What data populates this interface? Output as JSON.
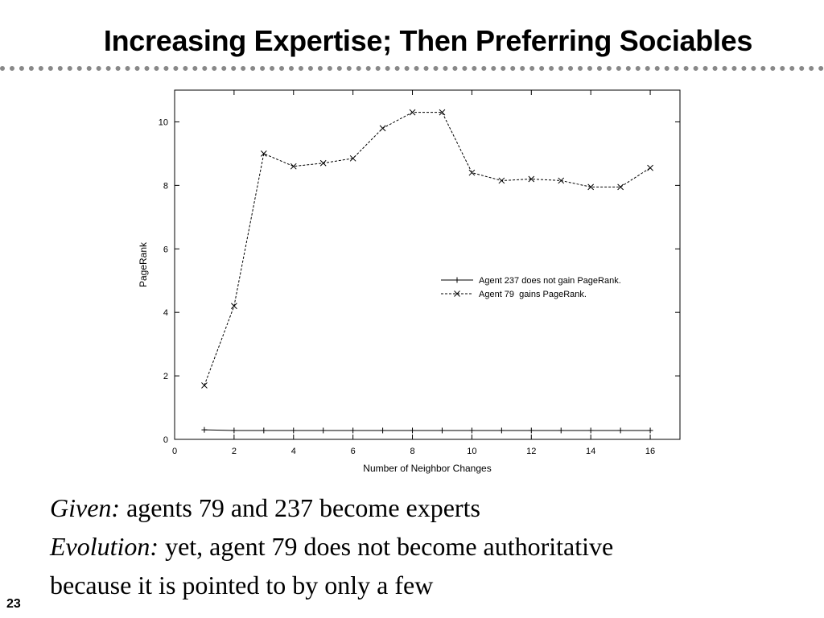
{
  "slide": {
    "title": "Increasing Expertise; Then Preferring Sociables",
    "number": "23"
  },
  "caption": {
    "line1_label": "Given:",
    "line1_text": "agents 79 and 237 become experts",
    "line2_label": "Evolution:",
    "line2_text": "yet, agent 79 does not become authoritative",
    "line3_text": "because it is pointed to by only a few"
  },
  "chart_data": {
    "type": "line",
    "xlabel": "Number of Neighbor Changes",
    "ylabel": "PageRank",
    "xlim": [
      0,
      17
    ],
    "ylim": [
      0,
      11
    ],
    "xticks": [
      0,
      2,
      4,
      6,
      8,
      10,
      12,
      14,
      16
    ],
    "yticks": [
      0,
      2,
      4,
      6,
      8,
      10
    ],
    "grid": false,
    "legend_position": "center-right",
    "x": [
      1,
      2,
      3,
      4,
      5,
      6,
      7,
      8,
      9,
      10,
      11,
      12,
      13,
      14,
      15,
      16
    ],
    "series": [
      {
        "name": "Agent 237 does not gain PageRank.",
        "marker": "+",
        "line": "solid",
        "values": [
          0.3,
          0.28,
          0.28,
          0.28,
          0.28,
          0.28,
          0.28,
          0.28,
          0.28,
          0.28,
          0.28,
          0.28,
          0.28,
          0.28,
          0.28,
          0.28
        ]
      },
      {
        "name": "Agent 79  gains PageRank.",
        "marker": "x",
        "line": "dashed",
        "values": [
          1.7,
          4.2,
          9.0,
          8.6,
          8.7,
          8.85,
          9.8,
          10.3,
          10.3,
          8.4,
          8.15,
          8.2,
          8.15,
          7.95,
          7.95,
          8.55
        ]
      }
    ]
  }
}
